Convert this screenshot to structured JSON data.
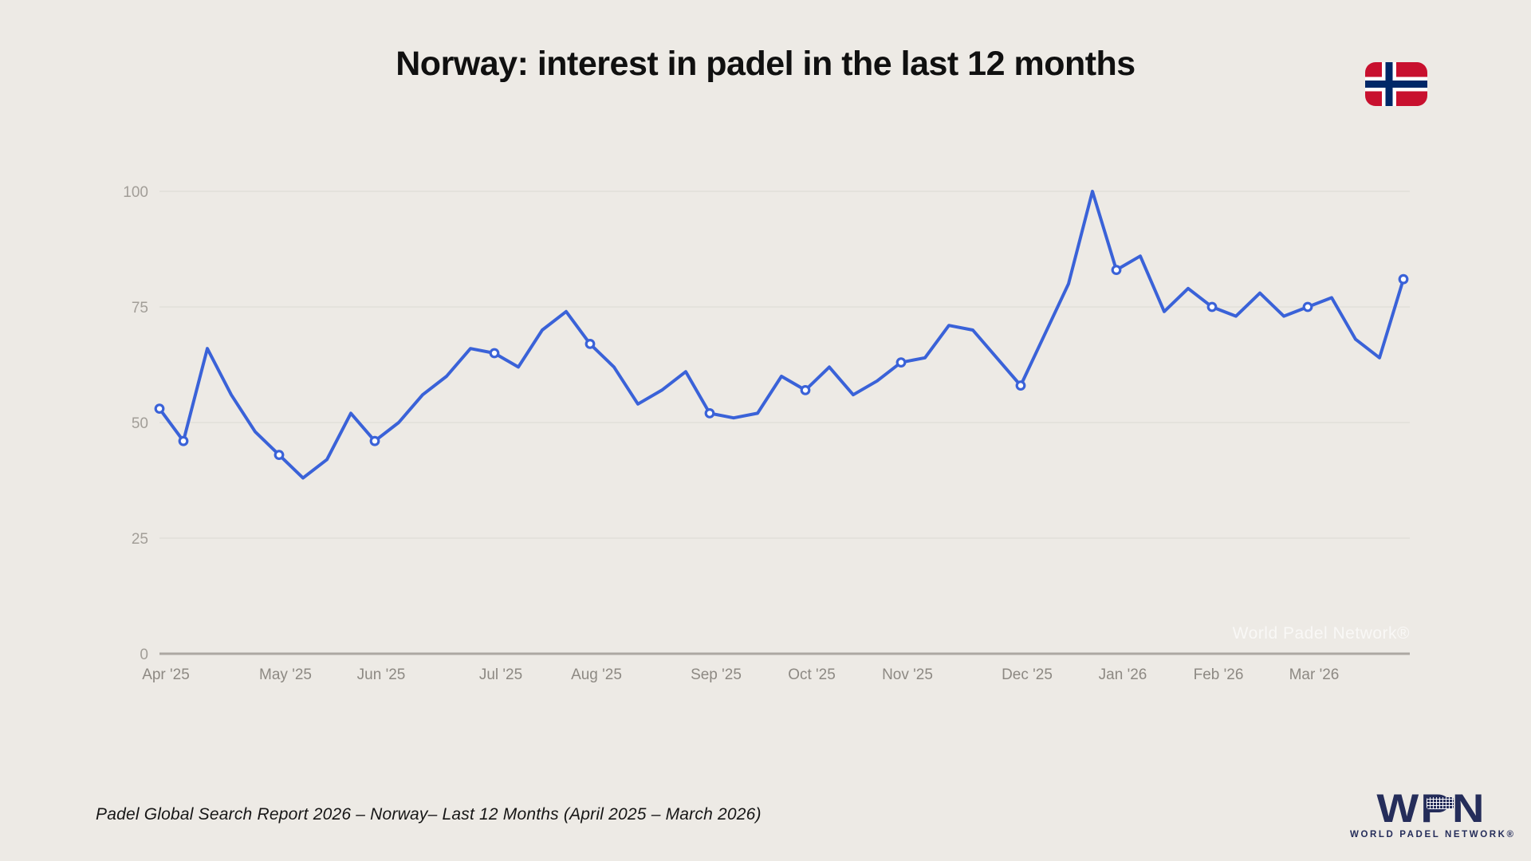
{
  "page": {
    "background_color": "#EDEAE5",
    "title": "Norway: interest in padel in the last 12 months",
    "watermark": "World Padel Network®",
    "footer": "Padel Global Search Report 2026 – Norway– Last 12 Months (April 2025 – March 2026)"
  },
  "flag": {
    "name": "flag-of-norway",
    "red": "#C8102E",
    "white": "#FFFFFF",
    "navy": "#002868"
  },
  "logo": {
    "acronym": "WPN",
    "subtext": "WORLD PADEL NETWORK®",
    "color": "#252D5A"
  },
  "chart_data": {
    "type": "line",
    "title": "Norway: interest in padel in the last 12 months",
    "xlabel": "",
    "ylabel": "",
    "ylim": [
      0,
      100
    ],
    "grid": true,
    "legend": "none",
    "x_unit": "week",
    "values": [
      53,
      46,
      66,
      56,
      48,
      43,
      38,
      42,
      52,
      46,
      50,
      56,
      60,
      66,
      65,
      62,
      70,
      74,
      67,
      62,
      54,
      57,
      61,
      52,
      51,
      52,
      60,
      57,
      62,
      56,
      59,
      63,
      64,
      71,
      70,
      64,
      58,
      69,
      80,
      100,
      83,
      86,
      74,
      79,
      75,
      73,
      78,
      73,
      75,
      77,
      68,
      64,
      81
    ],
    "marker_indices": [
      0,
      1,
      5,
      9,
      14,
      18,
      23,
      27,
      31,
      36,
      40,
      44,
      48,
      52
    ],
    "x_tick_labels": [
      "Apr '25",
      "May '25",
      "Jun '25",
      "Jul '25",
      "Aug '25",
      "Sep '25",
      "Oct '25",
      "Nov '25",
      "Dec '25",
      "Jan '26",
      "Feb '26",
      "Mar '26"
    ],
    "x_tick_indices": [
      0,
      5,
      9,
      14,
      18,
      23,
      27,
      31,
      36,
      40,
      44,
      48
    ],
    "y_ticks": [
      0,
      25,
      50,
      75,
      100
    ],
    "line_color": "#3A62D8",
    "marker_fill": "#FFFFFF",
    "grid_color": "#E0DDD7",
    "axis_line_color": "#ACA8A2",
    "y_tick_color": "#A29E98",
    "x_tick_color": "#8D8983"
  }
}
